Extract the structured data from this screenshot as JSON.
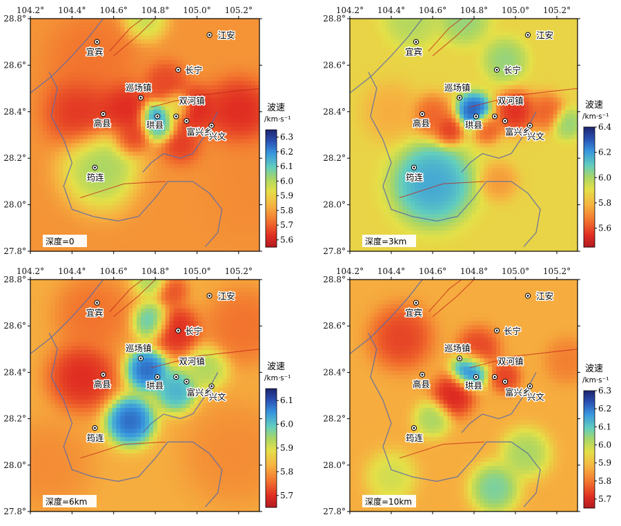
{
  "chart_data": [
    {
      "type": "heatmap",
      "panel_label": "深度=0",
      "xlim": [
        104.2,
        105.3
      ],
      "ylim": [
        27.8,
        28.8
      ],
      "x_ticks": [
        "104.2°",
        "104.4°",
        "104.6°",
        "104.8°",
        "105.0°",
        "105.2°"
      ],
      "y_ticks": [
        "28.8°",
        "28.6°",
        "28.4°",
        "28.2°",
        "28.0°",
        "27.8°"
      ],
      "colorbar": {
        "title": "波速",
        "unit": "/km·s⁻¹",
        "range": [
          5.55,
          6.35
        ],
        "ticks": [
          "6.3",
          "6.2",
          "6.1",
          "6.0",
          "5.9",
          "5.8",
          "5.7",
          "5.6"
        ]
      },
      "sites": [
        {
          "name": "宜宾",
          "lon": 104.52,
          "lat": 28.7
        },
        {
          "name": "江安",
          "lon": 105.06,
          "lat": 28.73
        },
        {
          "name": "长宁",
          "lon": 104.91,
          "lat": 28.58
        },
        {
          "name": "巡场镇",
          "lon": 104.73,
          "lat": 28.46
        },
        {
          "name": "双河镇",
          "lon": 104.9,
          "lat": 28.38
        },
        {
          "name": "高县",
          "lon": 104.55,
          "lat": 28.39
        },
        {
          "name": "珙县",
          "lon": 104.81,
          "lat": 28.38
        },
        {
          "name": "富兴乡",
          "lon": 104.95,
          "lat": 28.36
        },
        {
          "name": "兴文",
          "lon": 105.07,
          "lat": 28.34
        },
        {
          "name": "筠连",
          "lon": 104.51,
          "lat": 28.16
        }
      ],
      "anomalies": [
        {
          "lon": 104.55,
          "lat": 28.16,
          "value": 6.05,
          "radius": 0.13
        },
        {
          "lon": 104.8,
          "lat": 28.38,
          "value": 6.25,
          "radius": 0.05
        },
        {
          "lon": 104.82,
          "lat": 28.33,
          "value": 6.15,
          "radius": 0.05
        },
        {
          "lon": 104.9,
          "lat": 28.42,
          "value": 6.0,
          "radius": 0.05
        },
        {
          "lon": 104.75,
          "lat": 28.8,
          "value": 6.0,
          "radius": 0.07
        },
        {
          "lon": 104.45,
          "lat": 28.4,
          "value": 5.62,
          "radius": 0.12
        },
        {
          "lon": 104.65,
          "lat": 28.41,
          "value": 5.6,
          "radius": 0.09
        },
        {
          "lon": 104.68,
          "lat": 28.28,
          "value": 5.62,
          "radius": 0.06
        },
        {
          "lon": 104.93,
          "lat": 28.24,
          "value": 5.6,
          "radius": 0.07
        },
        {
          "lon": 104.99,
          "lat": 28.4,
          "value": 5.6,
          "radius": 0.08
        },
        {
          "lon": 105.2,
          "lat": 28.39,
          "value": 5.6,
          "radius": 0.11
        },
        {
          "lon": 104.85,
          "lat": 28.52,
          "value": 5.65,
          "radius": 0.07
        },
        {
          "lon": 104.5,
          "lat": 28.62,
          "value": 5.72,
          "radius": 0.14
        },
        {
          "lon": 104.95,
          "lat": 28.05,
          "value": 5.78,
          "radius": 0.18
        },
        {
          "lon": 105.2,
          "lat": 28.1,
          "value": 5.76,
          "radius": 0.18
        }
      ]
    },
    {
      "type": "heatmap",
      "panel_label": "深度=3km",
      "xlim": [
        104.2,
        105.3
      ],
      "ylim": [
        27.8,
        28.8
      ],
      "x_ticks": [
        "104.2°",
        "104.4°",
        "104.6°",
        "104.8°",
        "105.0°",
        "105.2°"
      ],
      "y_ticks": [
        "28.8°",
        "28.6°",
        "28.4°",
        "28.2°",
        "28.0°",
        "27.8°"
      ],
      "colorbar": {
        "title": "波速",
        "unit": "/km·s⁻¹",
        "range": [
          5.45,
          6.4
        ],
        "ticks": [
          "6.4",
          "6.2",
          "6.0",
          "5.8",
          "5.6"
        ]
      },
      "sites": [
        {
          "name": "宜宾",
          "lon": 104.52,
          "lat": 28.7
        },
        {
          "name": "江安",
          "lon": 105.06,
          "lat": 28.73
        },
        {
          "name": "长宁",
          "lon": 104.91,
          "lat": 28.58
        },
        {
          "name": "巡场镇",
          "lon": 104.73,
          "lat": 28.46
        },
        {
          "name": "双河镇",
          "lon": 104.9,
          "lat": 28.38
        },
        {
          "name": "高县",
          "lon": 104.55,
          "lat": 28.39
        },
        {
          "name": "珙县",
          "lon": 104.81,
          "lat": 28.38
        },
        {
          "name": "富兴乡",
          "lon": 104.95,
          "lat": 28.36
        },
        {
          "name": "兴文",
          "lon": 105.07,
          "lat": 28.34
        },
        {
          "name": "筠连",
          "lon": 104.51,
          "lat": 28.16
        }
      ],
      "anomalies": [
        {
          "lon": 104.6,
          "lat": 28.09,
          "value": 6.22,
          "radius": 0.13
        },
        {
          "lon": 104.8,
          "lat": 28.4,
          "value": 6.35,
          "radius": 0.06
        },
        {
          "lon": 104.95,
          "lat": 28.62,
          "value": 6.05,
          "radius": 0.07
        },
        {
          "lon": 104.75,
          "lat": 28.8,
          "value": 6.05,
          "radius": 0.08
        },
        {
          "lon": 104.5,
          "lat": 28.8,
          "value": 6.0,
          "radius": 0.09
        },
        {
          "lon": 105.25,
          "lat": 28.35,
          "value": 6.05,
          "radius": 0.05
        },
        {
          "lon": 104.6,
          "lat": 28.38,
          "value": 5.6,
          "radius": 0.07
        },
        {
          "lon": 104.68,
          "lat": 28.32,
          "value": 5.52,
          "radius": 0.05
        },
        {
          "lon": 104.86,
          "lat": 28.33,
          "value": 5.58,
          "radius": 0.05
        },
        {
          "lon": 105.0,
          "lat": 28.4,
          "value": 5.5,
          "radius": 0.07
        },
        {
          "lon": 105.15,
          "lat": 28.4,
          "value": 5.6,
          "radius": 0.06
        },
        {
          "lon": 104.92,
          "lat": 28.1,
          "value": 5.72,
          "radius": 0.06
        },
        {
          "lon": 104.4,
          "lat": 28.4,
          "value": 5.76,
          "radius": 0.09
        }
      ]
    },
    {
      "type": "heatmap",
      "panel_label": "深度=6km",
      "xlim": [
        104.2,
        105.3
      ],
      "ylim": [
        27.8,
        28.8
      ],
      "x_ticks": [
        "104.2°",
        "104.4°",
        "104.6°",
        "104.8°",
        "105.0°",
        "105.2°"
      ],
      "y_ticks": [
        "28.8°",
        "28.6°",
        "28.4°",
        "28.2°",
        "28.0°",
        "27.8°"
      ],
      "colorbar": {
        "title": "波速",
        "unit": "/km·s⁻¹",
        "range": [
          5.65,
          6.15
        ],
        "ticks": [
          "6.1",
          "6.0",
          "5.9",
          "5.8",
          "5.7"
        ]
      },
      "sites": [
        {
          "name": "宜宾",
          "lon": 104.52,
          "lat": 28.7
        },
        {
          "name": "江安",
          "lon": 105.06,
          "lat": 28.73
        },
        {
          "name": "长宁",
          "lon": 104.91,
          "lat": 28.58
        },
        {
          "name": "巡场镇",
          "lon": 104.73,
          "lat": 28.46
        },
        {
          "name": "双河镇",
          "lon": 104.9,
          "lat": 28.38
        },
        {
          "name": "高县",
          "lon": 104.55,
          "lat": 28.39
        },
        {
          "name": "珙县",
          "lon": 104.81,
          "lat": 28.38
        },
        {
          "name": "富兴乡",
          "lon": 104.95,
          "lat": 28.36
        },
        {
          "name": "兴文",
          "lon": 105.07,
          "lat": 28.34
        },
        {
          "name": "筠连",
          "lon": 104.51,
          "lat": 28.16
        }
      ],
      "anomalies": [
        {
          "lon": 104.68,
          "lat": 28.19,
          "value": 6.12,
          "radius": 0.08
        },
        {
          "lon": 104.76,
          "lat": 28.41,
          "value": 6.12,
          "radius": 0.07
        },
        {
          "lon": 104.9,
          "lat": 28.32,
          "value": 6.05,
          "radius": 0.07
        },
        {
          "lon": 104.78,
          "lat": 28.62,
          "value": 6.02,
          "radius": 0.06
        },
        {
          "lon": 104.78,
          "lat": 28.8,
          "value": 5.95,
          "radius": 0.06
        },
        {
          "lon": 105.05,
          "lat": 28.42,
          "value": 5.95,
          "radius": 0.07
        },
        {
          "lon": 104.45,
          "lat": 28.38,
          "value": 5.68,
          "radius": 0.11
        },
        {
          "lon": 104.9,
          "lat": 28.58,
          "value": 5.68,
          "radius": 0.08
        },
        {
          "lon": 104.88,
          "lat": 28.75,
          "value": 5.72,
          "radius": 0.05
        },
        {
          "lon": 104.5,
          "lat": 28.65,
          "value": 5.75,
          "radius": 0.12
        },
        {
          "lon": 105.22,
          "lat": 28.6,
          "value": 5.75,
          "radius": 0.12
        },
        {
          "lon": 104.28,
          "lat": 28.0,
          "value": 5.78,
          "radius": 0.14
        },
        {
          "lon": 105.18,
          "lat": 28.05,
          "value": 5.78,
          "radius": 0.16
        }
      ]
    },
    {
      "type": "heatmap",
      "panel_label": "深度=10km",
      "xlim": [
        104.2,
        105.3
      ],
      "ylim": [
        27.8,
        28.8
      ],
      "x_ticks": [
        "104.2°",
        "104.4°",
        "104.6°",
        "104.8°",
        "105.0°",
        "105.2°"
      ],
      "y_ticks": [
        "28.8°",
        "28.6°",
        "28.4°",
        "28.2°",
        "28.0°",
        "27.8°"
      ],
      "colorbar": {
        "title": "波速",
        "unit": "/km·s⁻¹",
        "range": [
          5.65,
          6.3
        ],
        "ticks": [
          "6.3",
          "6.2",
          "6.1",
          "6.0",
          "5.9",
          "5.8",
          "5.7"
        ]
      },
      "sites": [
        {
          "name": "宜宾",
          "lon": 104.52,
          "lat": 28.7
        },
        {
          "name": "江安",
          "lon": 105.06,
          "lat": 28.73
        },
        {
          "name": "长宁",
          "lon": 104.91,
          "lat": 28.58
        },
        {
          "name": "巡场镇",
          "lon": 104.73,
          "lat": 28.46
        },
        {
          "name": "双河镇",
          "lon": 104.9,
          "lat": 28.38
        },
        {
          "name": "高县",
          "lon": 104.55,
          "lat": 28.39
        },
        {
          "name": "珙县",
          "lon": 104.81,
          "lat": 28.38
        },
        {
          "name": "富兴乡",
          "lon": 104.95,
          "lat": 28.36
        },
        {
          "name": "兴文",
          "lon": 105.07,
          "lat": 28.34
        },
        {
          "name": "筠连",
          "lon": 104.51,
          "lat": 28.16
        }
      ],
      "anomalies": [
        {
          "lon": 104.78,
          "lat": 28.41,
          "value": 6.25,
          "radius": 0.06
        },
        {
          "lon": 104.6,
          "lat": 28.2,
          "value": 6.05,
          "radius": 0.06
        },
        {
          "lon": 104.9,
          "lat": 27.9,
          "value": 6.1,
          "radius": 0.08
        },
        {
          "lon": 105.05,
          "lat": 28.05,
          "value": 6.05,
          "radius": 0.08
        },
        {
          "lon": 104.4,
          "lat": 27.95,
          "value": 6.0,
          "radius": 0.08
        },
        {
          "lon": 104.45,
          "lat": 28.55,
          "value": 5.72,
          "radius": 0.1
        },
        {
          "lon": 104.82,
          "lat": 28.5,
          "value": 5.72,
          "radius": 0.07
        },
        {
          "lon": 104.7,
          "lat": 28.3,
          "value": 5.68,
          "radius": 0.07
        },
        {
          "lon": 104.95,
          "lat": 28.38,
          "value": 5.72,
          "radius": 0.05
        },
        {
          "lon": 105.25,
          "lat": 28.45,
          "value": 5.8,
          "radius": 0.07
        }
      ]
    }
  ]
}
